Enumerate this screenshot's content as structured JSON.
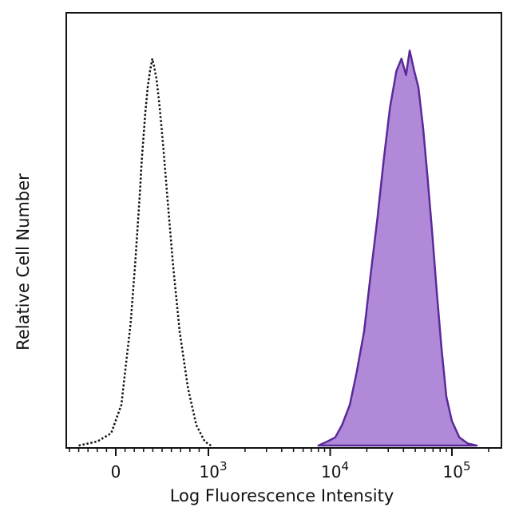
{
  "chart_data": {
    "type": "area",
    "title": "",
    "xlabel": "Log Fluorescence Intensity",
    "ylabel": "Relative Cell Number",
    "x_scale": "biexponential",
    "x_ticks": [
      {
        "value": 0,
        "label": "0",
        "exp": ""
      },
      {
        "value": 1000,
        "label": "10",
        "exp": "3"
      },
      {
        "value": 10000,
        "label": "10",
        "exp": "4"
      },
      {
        "value": 100000,
        "label": "10",
        "exp": "5"
      }
    ],
    "ylim": [
      0,
      100
    ],
    "grid": false,
    "series": [
      {
        "style": "dotted-outline",
        "color": "#111111",
        "points": [
          [
            -400,
            0
          ],
          [
            -200,
            1
          ],
          [
            -50,
            3
          ],
          [
            60,
            10
          ],
          [
            160,
            30
          ],
          [
            210,
            45
          ],
          [
            240,
            55
          ],
          [
            260,
            62
          ],
          [
            280,
            70
          ],
          [
            300,
            76
          ],
          [
            320,
            82
          ],
          [
            345,
            88
          ],
          [
            370,
            92
          ],
          [
            395,
            95
          ],
          [
            415,
            93
          ],
          [
            440,
            90
          ],
          [
            470,
            84
          ],
          [
            510,
            74
          ],
          [
            560,
            60
          ],
          [
            620,
            44
          ],
          [
            690,
            28
          ],
          [
            780,
            14
          ],
          [
            870,
            5
          ],
          [
            960,
            1
          ],
          [
            1050,
            0
          ]
        ]
      },
      {
        "style": "filled",
        "color": "#5b2a9a",
        "fill": "#b08ad8",
        "points": [
          [
            8000,
            0
          ],
          [
            9500,
            1
          ],
          [
            11000,
            2
          ],
          [
            12500,
            5
          ],
          [
            14500,
            10
          ],
          [
            16500,
            18
          ],
          [
            19000,
            28
          ],
          [
            21500,
            42
          ],
          [
            24500,
            56
          ],
          [
            27500,
            70
          ],
          [
            31000,
            83
          ],
          [
            35000,
            92
          ],
          [
            38500,
            95
          ],
          [
            42000,
            91
          ],
          [
            45000,
            97
          ],
          [
            49000,
            92
          ],
          [
            53000,
            88
          ],
          [
            58000,
            78
          ],
          [
            63000,
            66
          ],
          [
            69000,
            52
          ],
          [
            75000,
            38
          ],
          [
            82000,
            24
          ],
          [
            90000,
            12
          ],
          [
            100000,
            6
          ],
          [
            115000,
            2
          ],
          [
            135000,
            0.5
          ],
          [
            160000,
            0
          ]
        ]
      }
    ]
  }
}
